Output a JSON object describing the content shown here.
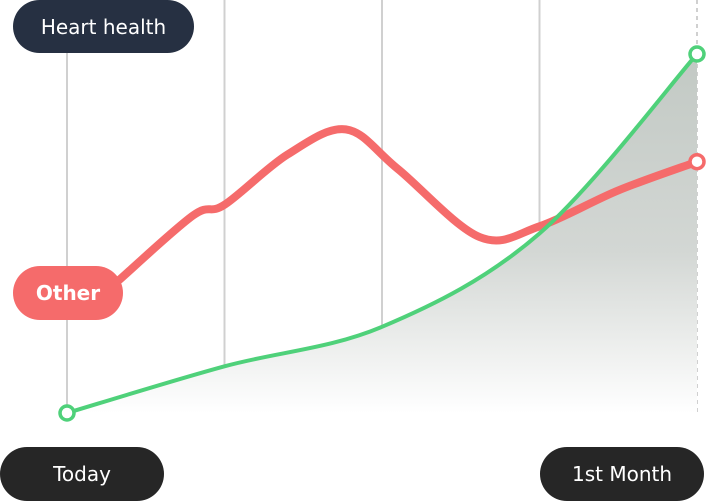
{
  "chart_data": {
    "type": "line",
    "x_start_label": "Today",
    "x_end_label": "1st Month",
    "xlim": [
      0,
      4
    ],
    "ylim": [
      0,
      100
    ],
    "grid": "vertical",
    "series": [
      {
        "name": "Heart health",
        "color": "#4fd17a",
        "fill": true,
        "points": [
          [
            0,
            0
          ],
          [
            1,
            13
          ],
          [
            2,
            24
          ],
          [
            3,
            50
          ],
          [
            4,
            100
          ]
        ]
      },
      {
        "name": "Other",
        "color": "#f56b6b",
        "fill": false,
        "points": [
          [
            0.33,
            37
          ],
          [
            0.8,
            55
          ],
          [
            1,
            58
          ],
          [
            1.4,
            72
          ],
          [
            1.77,
            79
          ],
          [
            2.1,
            68
          ],
          [
            2.62,
            49
          ],
          [
            3,
            52
          ],
          [
            3.5,
            62
          ],
          [
            4,
            70
          ]
        ]
      }
    ]
  },
  "labels": {
    "heart_health": "Heart health",
    "other": "Other",
    "today": "Today",
    "first_month": "1st Month"
  },
  "colors": {
    "navy": "#263042",
    "dark": "#262626",
    "red": "#f56b6b",
    "green": "#4fd17a",
    "grid": "#d0d0d0"
  }
}
